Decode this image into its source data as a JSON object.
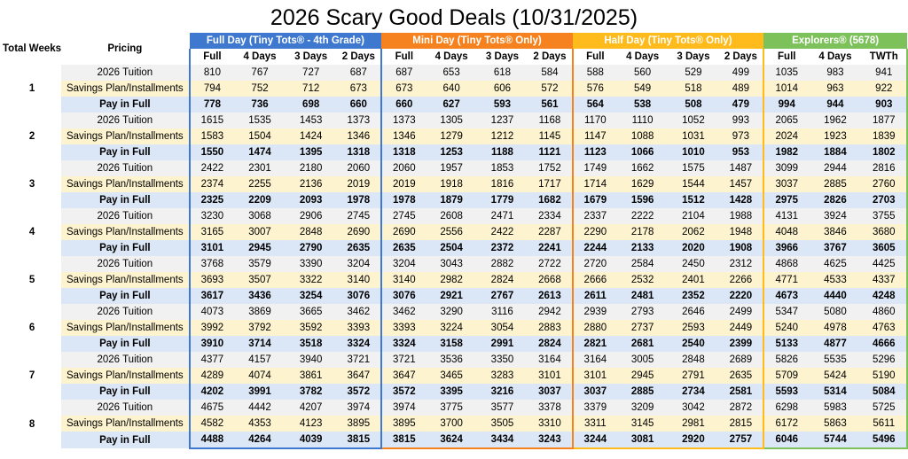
{
  "title": "2026 Scary Good Deals (10/31/2025)",
  "header": {
    "total_weeks": "Total Weeks",
    "pricing": "Pricing"
  },
  "groups": [
    {
      "key": "full",
      "label": "Full Day (Tiny Tots® - 4th Grade)",
      "color": "#3f79cf",
      "columns": [
        "Full",
        "4 Days",
        "3 Days",
        "2 Days"
      ]
    },
    {
      "key": "mini",
      "label": "Mini Day (Tiny Tots® Only)",
      "color": "#f5821e",
      "columns": [
        "Full",
        "4 Days",
        "3 Days",
        "2 Days"
      ]
    },
    {
      "key": "half",
      "label": "Half Day (Tiny Tots® Only)",
      "color": "#ffba1b",
      "columns": [
        "Full",
        "4 Days",
        "3 Days",
        "2 Days"
      ]
    },
    {
      "key": "exp",
      "label": "Explorers® (5678)",
      "color": "#7dc15b",
      "columns": [
        "Full",
        "4 Days",
        "TWTh"
      ]
    }
  ],
  "row_labels": [
    "2026 Tuition",
    "Savings Plan/Installments",
    "Pay in Full"
  ],
  "row_colors": [
    "#f1f1f1",
    "#fdf3ce",
    "#dbe7f7"
  ],
  "weeks": [
    {
      "week": "1",
      "rows": [
        [
          "810",
          "767",
          "727",
          "687",
          "687",
          "653",
          "618",
          "584",
          "588",
          "560",
          "529",
          "499",
          "1035",
          "983",
          "941"
        ],
        [
          "794",
          "752",
          "712",
          "673",
          "673",
          "640",
          "606",
          "572",
          "576",
          "549",
          "518",
          "489",
          "1014",
          "963",
          "922"
        ],
        [
          "778",
          "736",
          "698",
          "660",
          "660",
          "627",
          "593",
          "561",
          "564",
          "538",
          "508",
          "479",
          "994",
          "944",
          "903"
        ]
      ]
    },
    {
      "week": "2",
      "rows": [
        [
          "1615",
          "1535",
          "1453",
          "1373",
          "1373",
          "1305",
          "1237",
          "1168",
          "1170",
          "1110",
          "1052",
          "993",
          "2065",
          "1962",
          "1877"
        ],
        [
          "1583",
          "1504",
          "1424",
          "1346",
          "1346",
          "1279",
          "1212",
          "1145",
          "1147",
          "1088",
          "1031",
          "973",
          "2024",
          "1923",
          "1839"
        ],
        [
          "1550",
          "1474",
          "1395",
          "1318",
          "1318",
          "1253",
          "1188",
          "1121",
          "1123",
          "1066",
          "1010",
          "953",
          "1982",
          "1884",
          "1802"
        ]
      ]
    },
    {
      "week": "3",
      "rows": [
        [
          "2422",
          "2301",
          "2180",
          "2060",
          "2060",
          "1957",
          "1853",
          "1752",
          "1749",
          "1662",
          "1575",
          "1487",
          "3099",
          "2944",
          "2816"
        ],
        [
          "2374",
          "2255",
          "2136",
          "2019",
          "2019",
          "1918",
          "1816",
          "1717",
          "1714",
          "1629",
          "1544",
          "1457",
          "3037",
          "2885",
          "2760"
        ],
        [
          "2325",
          "2209",
          "2093",
          "1978",
          "1978",
          "1879",
          "1779",
          "1682",
          "1679",
          "1596",
          "1512",
          "1428",
          "2975",
          "2826",
          "2703"
        ]
      ]
    },
    {
      "week": "4",
      "rows": [
        [
          "3230",
          "3068",
          "2906",
          "2745",
          "2745",
          "2608",
          "2471",
          "2334",
          "2337",
          "2222",
          "2104",
          "1988",
          "4131",
          "3924",
          "3755"
        ],
        [
          "3165",
          "3007",
          "2848",
          "2690",
          "2690",
          "2556",
          "2422",
          "2287",
          "2290",
          "2178",
          "2062",
          "1948",
          "4048",
          "3846",
          "3680"
        ],
        [
          "3101",
          "2945",
          "2790",
          "2635",
          "2635",
          "2504",
          "2372",
          "2241",
          "2244",
          "2133",
          "2020",
          "1908",
          "3966",
          "3767",
          "3605"
        ]
      ]
    },
    {
      "week": "5",
      "rows": [
        [
          "3768",
          "3579",
          "3390",
          "3204",
          "3204",
          "3043",
          "2882",
          "2722",
          "2720",
          "2584",
          "2450",
          "2312",
          "4868",
          "4625",
          "4425"
        ],
        [
          "3693",
          "3507",
          "3322",
          "3140",
          "3140",
          "2982",
          "2824",
          "2668",
          "2666",
          "2532",
          "2401",
          "2266",
          "4771",
          "4533",
          "4337"
        ],
        [
          "3617",
          "3436",
          "3254",
          "3076",
          "3076",
          "2921",
          "2767",
          "2613",
          "2611",
          "2481",
          "2352",
          "2220",
          "4673",
          "4440",
          "4248"
        ]
      ]
    },
    {
      "week": "6",
      "rows": [
        [
          "4073",
          "3869",
          "3665",
          "3462",
          "3462",
          "3290",
          "3116",
          "2942",
          "2939",
          "2793",
          "2646",
          "2499",
          "5347",
          "5080",
          "4860"
        ],
        [
          "3992",
          "3792",
          "3592",
          "3393",
          "3393",
          "3224",
          "3054",
          "2883",
          "2880",
          "2737",
          "2593",
          "2449",
          "5240",
          "4978",
          "4763"
        ],
        [
          "3910",
          "3714",
          "3518",
          "3324",
          "3324",
          "3158",
          "2991",
          "2824",
          "2821",
          "2681",
          "2540",
          "2399",
          "5133",
          "4877",
          "4666"
        ]
      ]
    },
    {
      "week": "7",
      "rows": [
        [
          "4377",
          "4157",
          "3940",
          "3721",
          "3721",
          "3536",
          "3350",
          "3164",
          "3164",
          "3005",
          "2848",
          "2689",
          "5826",
          "5535",
          "5296"
        ],
        [
          "4289",
          "4074",
          "3861",
          "3647",
          "3647",
          "3465",
          "3283",
          "3101",
          "3101",
          "2945",
          "2791",
          "2635",
          "5709",
          "5424",
          "5190"
        ],
        [
          "4202",
          "3991",
          "3782",
          "3572",
          "3572",
          "3395",
          "3216",
          "3037",
          "3037",
          "2885",
          "2734",
          "2581",
          "5593",
          "5314",
          "5084"
        ]
      ]
    },
    {
      "week": "8",
      "rows": [
        [
          "4675",
          "4442",
          "4207",
          "3974",
          "3974",
          "3775",
          "3577",
          "3378",
          "3379",
          "3209",
          "3042",
          "2872",
          "6298",
          "5983",
          "5725"
        ],
        [
          "4582",
          "4353",
          "4123",
          "3895",
          "3895",
          "3700",
          "3505",
          "3310",
          "3311",
          "3145",
          "2981",
          "2815",
          "6172",
          "5863",
          "5611"
        ],
        [
          "4488",
          "4264",
          "4039",
          "3815",
          "3815",
          "3624",
          "3434",
          "3243",
          "3244",
          "3081",
          "2920",
          "2757",
          "6046",
          "5744",
          "5496"
        ]
      ]
    }
  ]
}
